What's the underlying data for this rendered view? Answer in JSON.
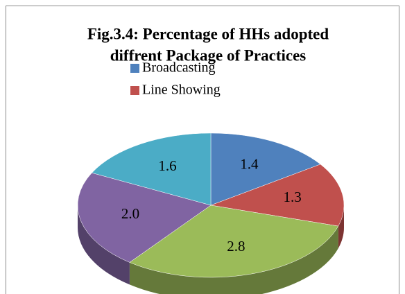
{
  "chart_data": {
    "type": "pie",
    "title": [
      "Fig.3.4: Percentage of HHs adopted",
      "diffrent Package of Practices"
    ],
    "categories": [
      "Broadcasting",
      "Line Showing",
      null,
      null,
      null
    ],
    "values": [
      1.4,
      1.3,
      2.8,
      2.0,
      1.6
    ],
    "value_labels": [
      "1.4",
      "1.3",
      "2.8",
      "2.0",
      "1.6"
    ],
    "colors": [
      "#4f81bd",
      "#c0504d",
      "#9bbb59",
      "#8064a2",
      "#4bacc6"
    ],
    "three_d": true
  }
}
